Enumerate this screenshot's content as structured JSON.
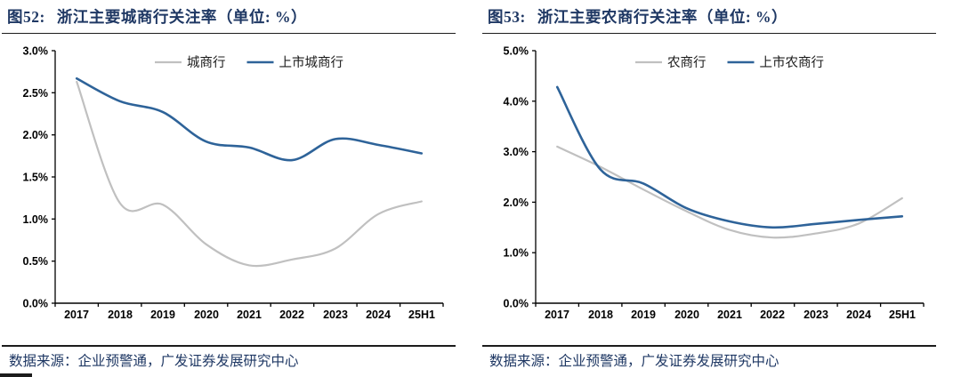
{
  "colors": {
    "title_navy": "#1F3864",
    "gray_line": "#C0C0C0",
    "blue_line": "#2E6399",
    "axis_black": "#000000"
  },
  "chart_data": [
    {
      "type": "line",
      "figure_label": "图52:",
      "title": "浙江主要城商行关注率（单位: %）",
      "categories": [
        "2017",
        "2018",
        "2019",
        "2020",
        "2021",
        "2022",
        "2023",
        "2024",
        "25H1"
      ],
      "series": [
        {
          "name": "城商行",
          "color": "#C0C0C0",
          "values": [
            2.63,
            1.19,
            1.17,
            0.7,
            0.45,
            0.52,
            0.65,
            1.06,
            1.21
          ]
        },
        {
          "name": "上市城商行",
          "color": "#2E6399",
          "values": [
            2.67,
            2.4,
            2.27,
            1.92,
            1.85,
            1.7,
            1.95,
            1.88,
            1.78
          ]
        }
      ],
      "ylim": [
        0,
        3.0
      ],
      "ytick_step": 0.5,
      "ytick_labels": [
        "0.0%",
        "0.5%",
        "1.0%",
        "1.5%",
        "2.0%",
        "2.5%",
        "3.0%"
      ],
      "xlabel": "",
      "ylabel": "",
      "grid": false,
      "legend_position": "top",
      "smoothed": true,
      "source": "数据来源：企业预警通，广发证券发展研究中心"
    },
    {
      "type": "line",
      "figure_label": "图53:",
      "title": "浙江主要农商行关注率（单位: %）",
      "categories": [
        "2017",
        "2018",
        "2019",
        "2020",
        "2021",
        "2022",
        "2023",
        "2024",
        "25H1"
      ],
      "series": [
        {
          "name": "农商行",
          "color": "#C0C0C0",
          "values": [
            3.1,
            2.7,
            2.25,
            1.82,
            1.45,
            1.3,
            1.38,
            1.58,
            2.08
          ]
        },
        {
          "name": "上市农商行",
          "color": "#2E6399",
          "values": [
            4.28,
            2.65,
            2.37,
            1.88,
            1.62,
            1.5,
            1.57,
            1.65,
            1.72
          ]
        }
      ],
      "ylim": [
        0,
        5.0
      ],
      "ytick_step": 1.0,
      "ytick_labels": [
        "0.0%",
        "1.0%",
        "2.0%",
        "3.0%",
        "4.0%",
        "5.0%"
      ],
      "xlabel": "",
      "ylabel": "",
      "grid": false,
      "legend_position": "top",
      "smoothed": true,
      "source": "数据来源：企业预警通，广发证券发展研究中心"
    }
  ]
}
